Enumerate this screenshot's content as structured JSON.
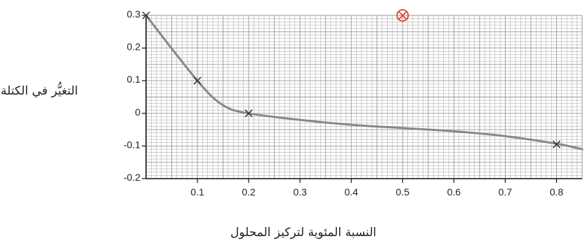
{
  "chart_data": {
    "type": "line",
    "title": "",
    "xlabel": "النسبة المئوية لتركيز المحلول",
    "ylabel": "التغيُّر في الكتلة (g)",
    "xlim": [
      0,
      0.85
    ],
    "ylim": [
      -0.2,
      0.3
    ],
    "x_ticks": [
      0.1,
      0.2,
      0.3,
      0.4,
      0.5,
      0.6,
      0.7,
      0.8
    ],
    "x_tick_labels": [
      "0.1",
      "0.2",
      "0.3",
      "0.4",
      "0.5",
      "0.6",
      "0.7",
      "0.8"
    ],
    "y_ticks": [
      0.3,
      0.2,
      0.1,
      0,
      -0.1,
      -0.2
    ],
    "y_tick_labels": [
      "0.3",
      "0.2",
      "0.1",
      "0",
      "-0.1",
      "-0.2"
    ],
    "grid": true,
    "series": [
      {
        "points": [
          {
            "x": 0,
            "y": 0.3
          },
          {
            "x": 0.1,
            "y": 0.1
          },
          {
            "x": 0.2,
            "y": 0.0
          },
          {
            "x": 0.8,
            "y": -0.095
          }
        ],
        "curve": [
          {
            "x": 0,
            "y": 0.3
          },
          {
            "x": 0.1,
            "y": 0.1
          },
          {
            "x": 0.15,
            "y": 0.025
          },
          {
            "x": 0.2,
            "y": 0.0
          },
          {
            "x": 0.3,
            "y": -0.02
          },
          {
            "x": 0.4,
            "y": -0.035
          },
          {
            "x": 0.5,
            "y": -0.045
          },
          {
            "x": 0.6,
            "y": -0.055
          },
          {
            "x": 0.7,
            "y": -0.07
          },
          {
            "x": 0.8,
            "y": -0.093
          },
          {
            "x": 0.85,
            "y": -0.11
          }
        ],
        "color": "#888888"
      }
    ],
    "highlight_point": {
      "x": 0.5,
      "y": 0.3,
      "color": "#e0442c"
    },
    "colors": {
      "grid": "#999999",
      "axis": "#111111",
      "marker": "#333333"
    }
  }
}
